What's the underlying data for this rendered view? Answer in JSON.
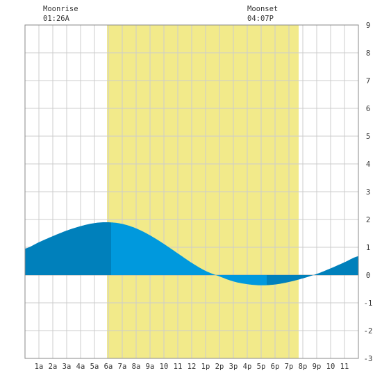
{
  "header": {
    "moonrise_label": "Moonrise",
    "moonrise_time": "01:26A",
    "moonset_label": "Moonset",
    "moonset_time": "04:07P"
  },
  "colors": {
    "daylight": "#f2ea8a",
    "tide_night": "#0080bb",
    "tide_day": "#0099dd",
    "grid": "#cccccc",
    "frame": "#888888",
    "zero_line": "#aaaaaa",
    "background": "#ffffff"
  },
  "chart_data": {
    "type": "area",
    "title": "",
    "xlabel": "",
    "ylabel": "",
    "xlim": [
      0,
      24
    ],
    "ylim": [
      -3,
      9
    ],
    "grid": true,
    "x_ticks": [
      {
        "hour": 1,
        "label": "1a"
      },
      {
        "hour": 2,
        "label": "2a"
      },
      {
        "hour": 3,
        "label": "3a"
      },
      {
        "hour": 4,
        "label": "4a"
      },
      {
        "hour": 5,
        "label": "5a"
      },
      {
        "hour": 6,
        "label": "6a"
      },
      {
        "hour": 7,
        "label": "7a"
      },
      {
        "hour": 8,
        "label": "8a"
      },
      {
        "hour": 9,
        "label": "9a"
      },
      {
        "hour": 10,
        "label": "10"
      },
      {
        "hour": 11,
        "label": "11"
      },
      {
        "hour": 12,
        "label": "12"
      },
      {
        "hour": 13,
        "label": "1p"
      },
      {
        "hour": 14,
        "label": "2p"
      },
      {
        "hour": 15,
        "label": "3p"
      },
      {
        "hour": 16,
        "label": "4p"
      },
      {
        "hour": 17,
        "label": "5p"
      },
      {
        "hour": 18,
        "label": "6p"
      },
      {
        "hour": 19,
        "label": "7p"
      },
      {
        "hour": 20,
        "label": "8p"
      },
      {
        "hour": 21,
        "label": "9p"
      },
      {
        "hour": 22,
        "label": "10"
      },
      {
        "hour": 23,
        "label": "11"
      }
    ],
    "y_ticks": [
      {
        "value": 9,
        "label": "9"
      },
      {
        "value": 8,
        "label": "8"
      },
      {
        "value": 7,
        "label": "7"
      },
      {
        "value": 6,
        "label": "6"
      },
      {
        "value": 5,
        "label": "5"
      },
      {
        "value": 4,
        "label": "4"
      },
      {
        "value": 3,
        "label": "3"
      },
      {
        "value": 2,
        "label": "2"
      },
      {
        "value": 1,
        "label": "1"
      },
      {
        "value": 0,
        "label": "0"
      },
      {
        "value": -1,
        "label": "-1"
      },
      {
        "value": -2,
        "label": "-2"
      },
      {
        "value": -3,
        "label": "-3"
      }
    ],
    "daylight": {
      "start": 5.9,
      "end": 19.7
    },
    "tide_color_split": {
      "day_start": 6.2,
      "day_end": 17.4
    },
    "high_tide": {
      "hour": 6.2,
      "height": 1.9
    },
    "low_tide": {
      "hour": 17.3,
      "height": -0.37
    },
    "tide_series": {
      "x": [
        0,
        1,
        2,
        3,
        4,
        5,
        6,
        7,
        8,
        9,
        10,
        11,
        12,
        13,
        14,
        15,
        16,
        17,
        18,
        19,
        20,
        21,
        22,
        23,
        24
      ],
      "y": [
        0.95,
        1.18,
        1.4,
        1.6,
        1.76,
        1.87,
        1.9,
        1.84,
        1.68,
        1.43,
        1.12,
        0.78,
        0.44,
        0.15,
        -0.05,
        -0.23,
        -0.33,
        -0.37,
        -0.34,
        -0.25,
        -0.12,
        0.04,
        0.24,
        0.46,
        0.68
      ]
    }
  }
}
